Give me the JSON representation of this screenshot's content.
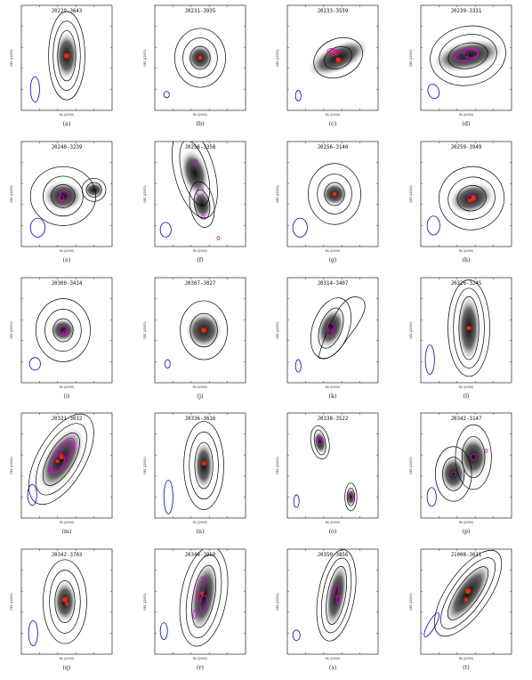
{
  "figure": {
    "axis_labels": {
      "x": "RA (J2000)",
      "y": "DEC (J2000)"
    },
    "panels": [
      {
        "letter": "(a)",
        "title": "J0229-3643"
      },
      {
        "letter": "(b)",
        "title": "J0231-3935"
      },
      {
        "letter": "(c)",
        "title": "J0233-3559"
      },
      {
        "letter": "(d)",
        "title": "J0239-3331"
      },
      {
        "letter": "(e)",
        "title": "J0240-3239"
      },
      {
        "letter": "(f)",
        "title": "J0256-3358"
      },
      {
        "letter": "(g)",
        "title": "J0256-3140"
      },
      {
        "letter": "(h)",
        "title": "J0259-3949"
      },
      {
        "letter": "(i)",
        "title": "J0300-3414"
      },
      {
        "letter": "(j)",
        "title": "J0307-3027"
      },
      {
        "letter": "(k)",
        "title": "J0314-3407"
      },
      {
        "letter": "(l)",
        "title": "J0326-3245"
      },
      {
        "letter": "(m)",
        "title": "J0331-3032"
      },
      {
        "letter": "(n)",
        "title": "J0336-3616"
      },
      {
        "letter": "(o)",
        "title": "J0338-3522"
      },
      {
        "letter": "(p)",
        "title": "J0342-3147"
      },
      {
        "letter": "(q)",
        "title": "J0342-3703"
      },
      {
        "letter": "(r)",
        "title": "J0344-3950"
      },
      {
        "letter": "(s)",
        "title": "J0350-3856"
      },
      {
        "letter": "(t)",
        "title": "J1008-3011"
      }
    ]
  }
}
